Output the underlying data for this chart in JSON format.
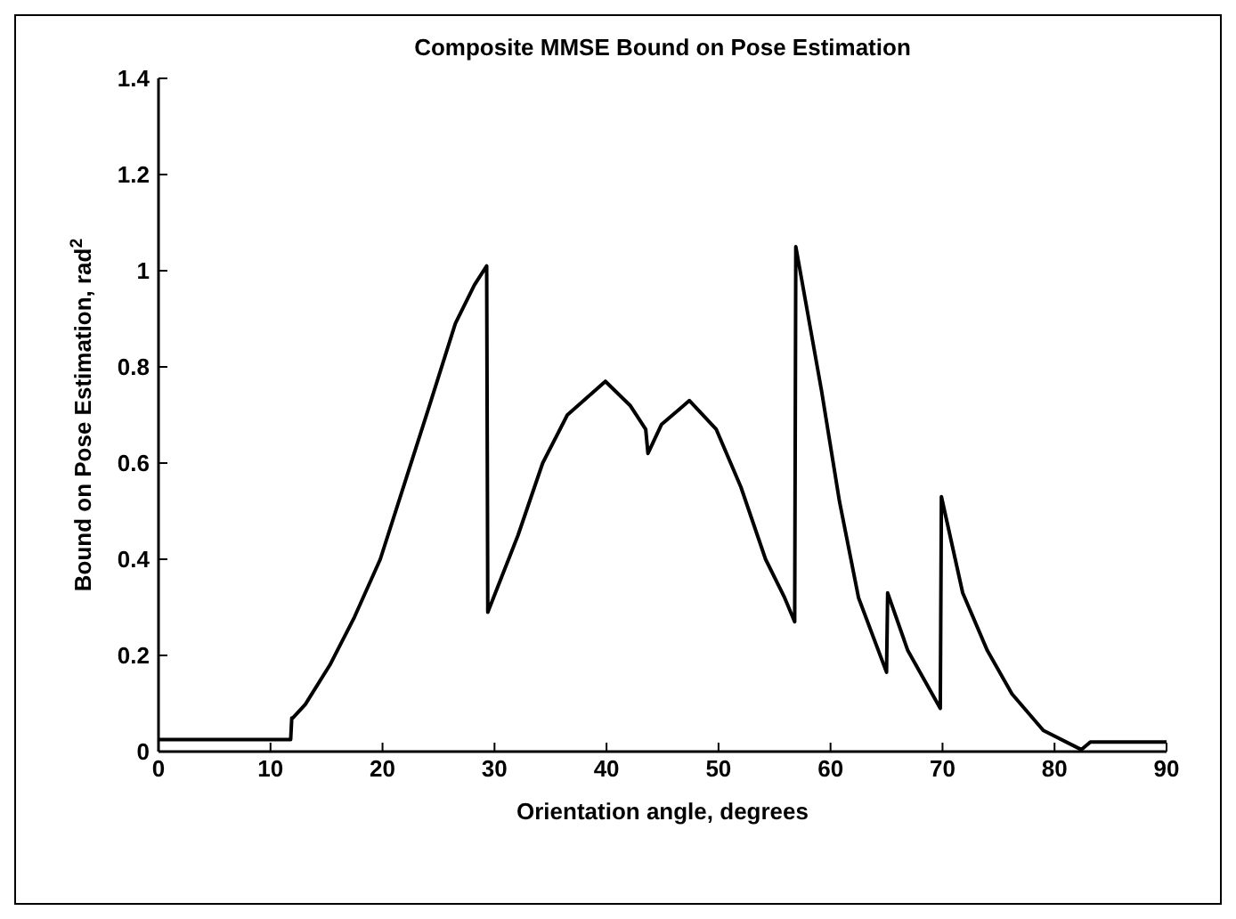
{
  "chart_data": {
    "type": "line",
    "title": "Composite MMSE Bound on Pose Estimation",
    "xlabel": "Orientation angle, degrees",
    "ylabel": "Bound on Pose Estimation, rad$^{2}$",
    "x": [
      0,
      11.8,
      11.9,
      12,
      13.1,
      15.3,
      17.5,
      19.8,
      22,
      24.2,
      26.5,
      28.2,
      29.3,
      29.4,
      32.1,
      34.3,
      36.5,
      39.9,
      42.1,
      43.5,
      43.7,
      44.9,
      47.4,
      49.8,
      52,
      54.2,
      55.9,
      56.8,
      56.9,
      59.2,
      60.8,
      62.5,
      65,
      65.1,
      66.9,
      69.8,
      69.9,
      71.8,
      74,
      76.2,
      79,
      82.4,
      83.2,
      90
    ],
    "series": [
      {
        "color": "#000000",
        "values": [
          0.025,
          0.025,
          0.07,
          0.07,
          0.098,
          0.18,
          0.28,
          0.4,
          0.56,
          0.72,
          0.89,
          0.97,
          1.01,
          0.29,
          0.45,
          0.6,
          0.7,
          0.77,
          0.72,
          0.67,
          0.62,
          0.68,
          0.73,
          0.67,
          0.55,
          0.4,
          0.32,
          0.27,
          1.05,
          0.75,
          0.52,
          0.32,
          0.165,
          0.33,
          0.21,
          0.09,
          0.53,
          0.33,
          0.21,
          0.12,
          0.044,
          0.004,
          0.02,
          0.02
        ]
      }
    ],
    "xlim": [
      0,
      90
    ],
    "xticks": [
      0,
      10,
      20,
      30,
      40,
      50,
      60,
      70,
      80,
      90
    ],
    "ylim": [
      0,
      1.4
    ],
    "yticks": [
      0,
      0.2,
      0.4,
      0.6,
      0.8,
      1,
      1.2,
      1.4
    ],
    "grid": false,
    "legend": false,
    "marker": "none",
    "line_style": "solid"
  }
}
